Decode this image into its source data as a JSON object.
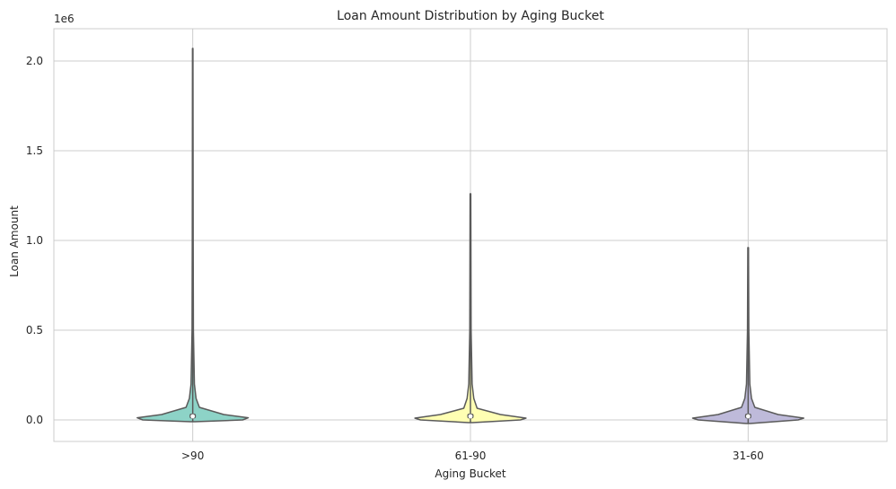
{
  "chart_data": {
    "type": "violin",
    "title": "Loan Amount Distribution by Aging Bucket",
    "xlabel": "Aging Bucket",
    "ylabel": "Loan Amount",
    "offset_label": "1e6",
    "categories": [
      ">90",
      "61-90",
      "31-60"
    ],
    "y_ticks": [
      0.0,
      0.5,
      1.0,
      1.5,
      2.0
    ],
    "y_tick_labels": [
      "0.0",
      "0.5",
      "1.0",
      "1.5",
      "2.0"
    ],
    "ylim": [
      -0.12,
      2.18
    ],
    "grid": true,
    "colors": [
      "#8dd3c7",
      "#ffffb3",
      "#bebada"
    ],
    "outline_color": "#5a5a5a",
    "series": [
      {
        "category": ">90",
        "min": -0.01,
        "max": 2.07,
        "median": 0.02,
        "q1": 0.008,
        "q3": 0.035,
        "density_profile": [
          [
            -0.01,
            0.02
          ],
          [
            0.0,
            0.45
          ],
          [
            0.012,
            0.5
          ],
          [
            0.03,
            0.28
          ],
          [
            0.07,
            0.06
          ],
          [
            0.12,
            0.03
          ],
          [
            0.2,
            0.015
          ],
          [
            0.5,
            0.006
          ],
          [
            1.0,
            0.004
          ],
          [
            2.07,
            0.002
          ]
        ]
      },
      {
        "category": "61-90",
        "min": -0.015,
        "max": 1.26,
        "median": 0.02,
        "q1": 0.008,
        "q3": 0.035,
        "density_profile": [
          [
            -0.015,
            0.02
          ],
          [
            0.0,
            0.45
          ],
          [
            0.01,
            0.5
          ],
          [
            0.03,
            0.27
          ],
          [
            0.065,
            0.06
          ],
          [
            0.12,
            0.03
          ],
          [
            0.2,
            0.015
          ],
          [
            0.5,
            0.006
          ],
          [
            1.26,
            0.003
          ]
        ]
      },
      {
        "category": "31-60",
        "min": -0.02,
        "max": 0.96,
        "median": 0.02,
        "q1": 0.008,
        "q3": 0.035,
        "density_profile": [
          [
            -0.02,
            0.02
          ],
          [
            0.0,
            0.45
          ],
          [
            0.01,
            0.5
          ],
          [
            0.03,
            0.27
          ],
          [
            0.07,
            0.06
          ],
          [
            0.12,
            0.03
          ],
          [
            0.2,
            0.015
          ],
          [
            0.5,
            0.006
          ],
          [
            0.96,
            0.003
          ]
        ]
      }
    ]
  }
}
